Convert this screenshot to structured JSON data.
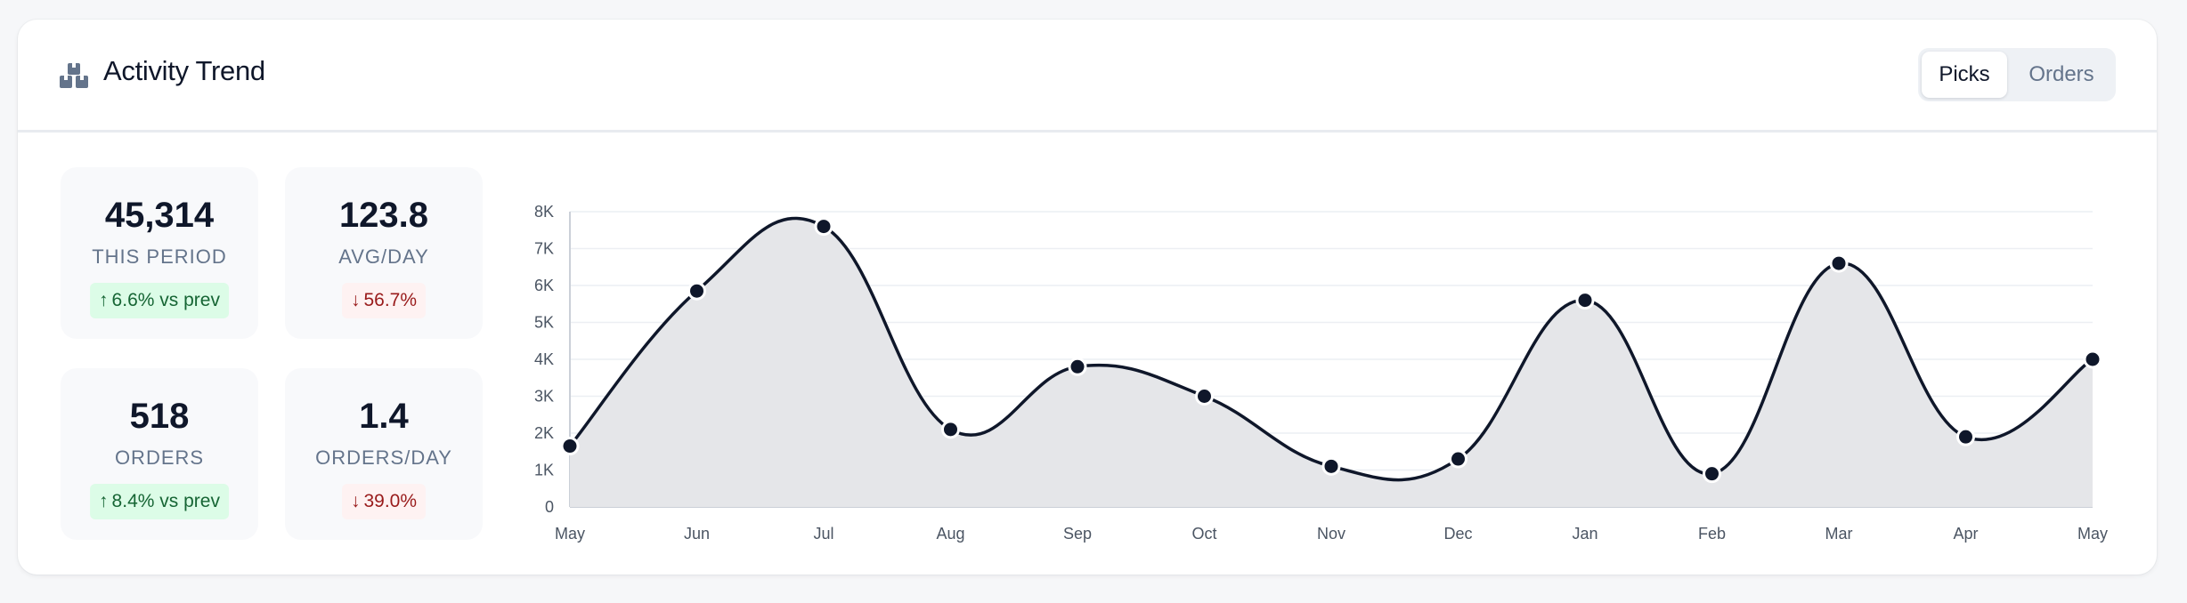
{
  "header": {
    "title": "Activity Trend",
    "icon": "boxes-icon",
    "toggle": {
      "active": "Picks",
      "inactive": "Orders"
    }
  },
  "stats": [
    {
      "value": "45,314",
      "label": "THIS PERIOD",
      "delta": "6.6% vs prev",
      "direction": "up"
    },
    {
      "value": "123.8",
      "label": "AVG/DAY",
      "delta": "56.7%",
      "direction": "down"
    },
    {
      "value": "518",
      "label": "ORDERS",
      "delta": "8.4% vs prev",
      "direction": "up"
    },
    {
      "value": "1.4",
      "label": "ORDERS/DAY",
      "delta": "39.0%",
      "direction": "down"
    }
  ],
  "colors": {
    "line": "#0f172a",
    "area": "#e5e6e9",
    "up": "#166534",
    "down": "#991b1b"
  },
  "chart_data": {
    "type": "area",
    "categories": [
      "May",
      "Jun",
      "Jul",
      "Aug",
      "Sep",
      "Oct",
      "Nov",
      "Dec",
      "Jan",
      "Feb",
      "Mar",
      "Apr",
      "May"
    ],
    "values": [
      1650,
      5850,
      7600,
      2100,
      3800,
      3000,
      1100,
      1300,
      5600,
      900,
      6600,
      1900,
      4000
    ],
    "yticks": [
      "0",
      "1K",
      "2K",
      "3K",
      "4K",
      "5K",
      "6K",
      "7K",
      "8K"
    ],
    "ylim": [
      0,
      8000
    ],
    "grid": true,
    "curve": "smooth"
  }
}
